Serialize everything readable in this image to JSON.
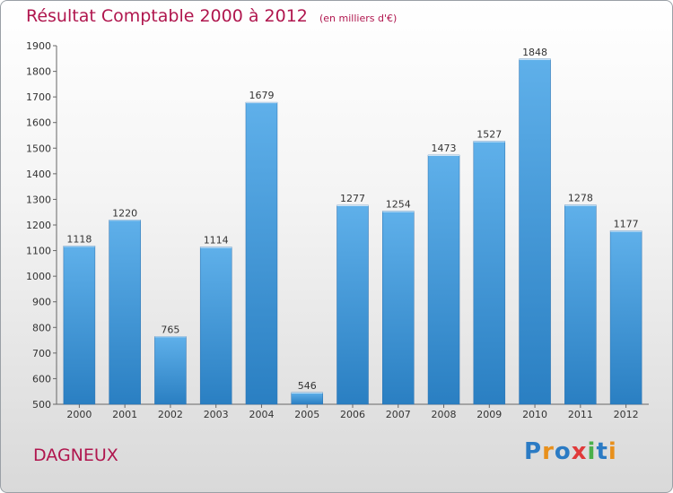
{
  "header": {
    "title": "Résultat Comptable 2000 à 2012",
    "subtitle": "(en milliers d'€)"
  },
  "footer": {
    "city": "DAGNEUX",
    "logo_letters": [
      "P",
      "r",
      "o",
      "x",
      "i",
      "t",
      "i"
    ],
    "logo_colors": [
      "#2b7bc4",
      "#e8901c",
      "#2b7bc4",
      "#e03a3a",
      "#4bb04b",
      "#2b7bc4",
      "#e8901c"
    ]
  },
  "colors": {
    "bar_top": "#5fb0ea",
    "bar_bottom": "#2a7fc2",
    "title": "#b0164e"
  },
  "chart_data": {
    "type": "bar",
    "title": "Résultat Comptable 2000 à 2012",
    "subtitle": "(en milliers d'€)",
    "categories": [
      "2000",
      "2001",
      "2002",
      "2003",
      "2004",
      "2005",
      "2006",
      "2007",
      "2008",
      "2009",
      "2010",
      "2011",
      "2012"
    ],
    "values": [
      1118,
      1220,
      765,
      1114,
      1679,
      546,
      1277,
      1254,
      1473,
      1527,
      1848,
      1278,
      1177
    ],
    "ylim": [
      500,
      1900
    ],
    "yticks": [
      500,
      600,
      700,
      800,
      900,
      1000,
      1100,
      1200,
      1300,
      1400,
      1500,
      1600,
      1700,
      1800,
      1900
    ],
    "xlabel": "",
    "ylabel": "",
    "grid": false
  }
}
